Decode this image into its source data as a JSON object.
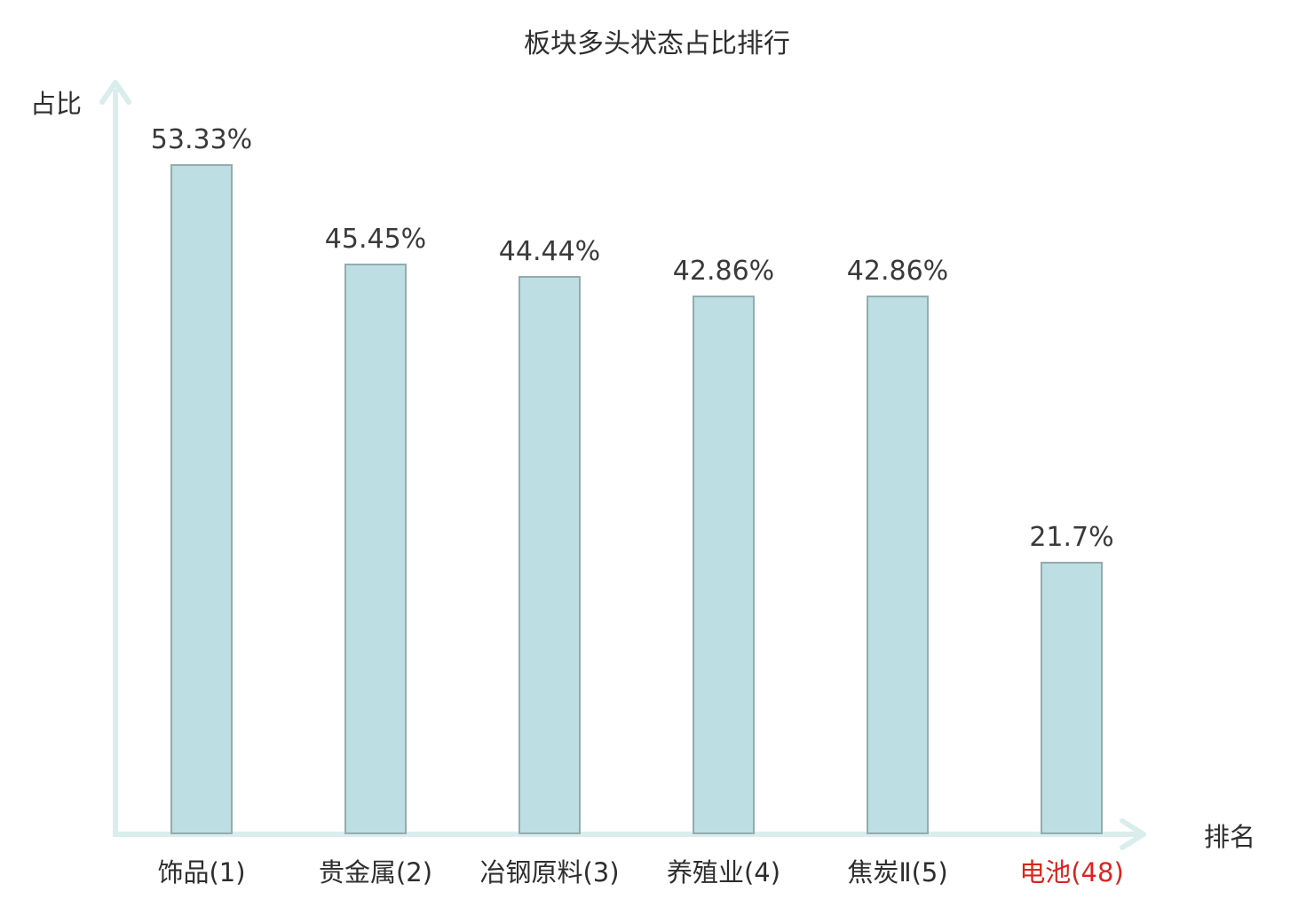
{
  "title": "板块多头状态占比排行",
  "axes": {
    "y_label": "占比",
    "x_label": "排名"
  },
  "colors": {
    "bar_fill": "#bddee2",
    "bar_border": "#94abaf",
    "axis": "#daeded",
    "text": "#3a3a3a",
    "highlight": "#d9251e"
  },
  "chart_data": {
    "type": "bar",
    "title": "板块多头状态占比排行",
    "xlabel": "排名",
    "ylabel": "占比",
    "ylim": [
      0,
      60
    ],
    "grid": false,
    "legend_position": "none",
    "categories": [
      "饰品(1)",
      "贵金属(2)",
      "冶钢原料(3)",
      "养殖业(4)",
      "焦炭Ⅱ(5)",
      "电池(48)"
    ],
    "values": [
      53.33,
      45.45,
      44.44,
      42.86,
      42.86,
      21.7
    ],
    "value_labels": [
      "53.33%",
      "45.45%",
      "44.44%",
      "42.86%",
      "42.86%",
      "21.7%"
    ],
    "highlighted_index": 5
  }
}
